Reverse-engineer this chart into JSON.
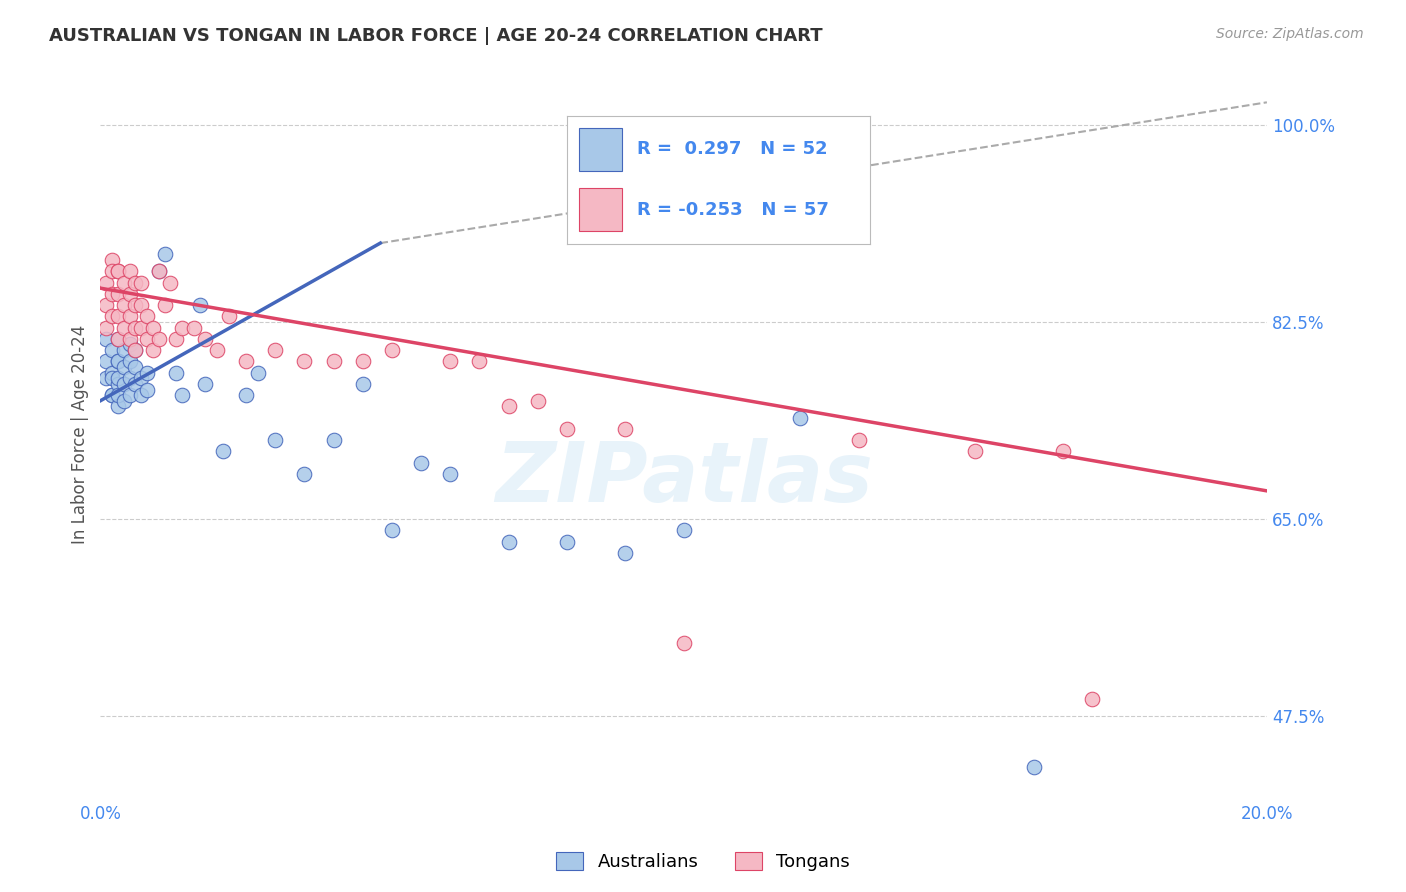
{
  "title": "AUSTRALIAN VS TONGAN IN LABOR FORCE | AGE 20-24 CORRELATION CHART",
  "source_text": "Source: ZipAtlas.com",
  "ylabel": "In Labor Force | Age 20-24",
  "xlim": [
    0.0,
    0.2
  ],
  "ylim": [
    0.4,
    1.05
  ],
  "xtick_positions": [
    0.0,
    0.05,
    0.1,
    0.15,
    0.2
  ],
  "xticklabels": [
    "0.0%",
    "",
    "",
    "",
    "20.0%"
  ],
  "ytick_positions": [
    0.475,
    0.65,
    0.825,
    1.0
  ],
  "ytick_labels": [
    "47.5%",
    "65.0%",
    "82.5%",
    "100.0%"
  ],
  "blue_R": 0.297,
  "blue_N": 52,
  "pink_R": -0.253,
  "pink_N": 57,
  "legend_label_blue": "Australians",
  "legend_label_pink": "Tongans",
  "watermark": "ZIPatlas",
  "blue_color": "#a8c8e8",
  "pink_color": "#f5b8c4",
  "blue_line_color": "#4466bb",
  "pink_line_color": "#dd4466",
  "grid_color": "#cccccc",
  "title_color": "#333333",
  "axis_label_color": "#555555",
  "right_tick_color": "#4488ee",
  "blue_trend_x": [
    0.0,
    0.048
  ],
  "blue_trend_y": [
    0.755,
    0.895
  ],
  "dash_line_x": [
    0.048,
    0.2
  ],
  "dash_line_y": [
    0.895,
    1.02
  ],
  "pink_trend_x": [
    0.0,
    0.2
  ],
  "pink_trend_y": [
    0.855,
    0.675
  ],
  "blue_scatter_x": [
    0.001,
    0.001,
    0.001,
    0.002,
    0.002,
    0.002,
    0.002,
    0.002,
    0.003,
    0.003,
    0.003,
    0.003,
    0.003,
    0.003,
    0.003,
    0.004,
    0.004,
    0.004,
    0.004,
    0.005,
    0.005,
    0.005,
    0.005,
    0.006,
    0.006,
    0.006,
    0.007,
    0.007,
    0.008,
    0.008,
    0.01,
    0.011,
    0.013,
    0.014,
    0.017,
    0.018,
    0.021,
    0.025,
    0.027,
    0.03,
    0.035,
    0.04,
    0.045,
    0.05,
    0.055,
    0.06,
    0.07,
    0.08,
    0.09,
    0.1,
    0.12,
    0.16
  ],
  "blue_scatter_y": [
    0.775,
    0.79,
    0.81,
    0.76,
    0.78,
    0.8,
    0.76,
    0.775,
    0.75,
    0.77,
    0.79,
    0.76,
    0.775,
    0.79,
    0.81,
    0.755,
    0.77,
    0.785,
    0.8,
    0.76,
    0.775,
    0.79,
    0.805,
    0.77,
    0.785,
    0.8,
    0.76,
    0.775,
    0.765,
    0.78,
    0.87,
    0.885,
    0.78,
    0.76,
    0.84,
    0.77,
    0.71,
    0.76,
    0.78,
    0.72,
    0.69,
    0.72,
    0.77,
    0.64,
    0.7,
    0.69,
    0.63,
    0.63,
    0.62,
    0.64,
    0.74,
    0.43
  ],
  "pink_scatter_x": [
    0.001,
    0.001,
    0.001,
    0.002,
    0.002,
    0.002,
    0.002,
    0.003,
    0.003,
    0.003,
    0.003,
    0.003,
    0.004,
    0.004,
    0.004,
    0.005,
    0.005,
    0.005,
    0.005,
    0.006,
    0.006,
    0.006,
    0.006,
    0.007,
    0.007,
    0.007,
    0.008,
    0.008,
    0.009,
    0.009,
    0.01,
    0.01,
    0.011,
    0.012,
    0.013,
    0.014,
    0.016,
    0.018,
    0.02,
    0.022,
    0.025,
    0.03,
    0.035,
    0.04,
    0.045,
    0.05,
    0.06,
    0.065,
    0.07,
    0.075,
    0.08,
    0.09,
    0.1,
    0.13,
    0.15,
    0.165,
    0.17
  ],
  "pink_scatter_y": [
    0.84,
    0.86,
    0.82,
    0.88,
    0.87,
    0.85,
    0.83,
    0.87,
    0.85,
    0.83,
    0.81,
    0.87,
    0.84,
    0.86,
    0.82,
    0.85,
    0.83,
    0.87,
    0.81,
    0.86,
    0.84,
    0.82,
    0.8,
    0.86,
    0.84,
    0.82,
    0.81,
    0.83,
    0.82,
    0.8,
    0.87,
    0.81,
    0.84,
    0.86,
    0.81,
    0.82,
    0.82,
    0.81,
    0.8,
    0.83,
    0.79,
    0.8,
    0.79,
    0.79,
    0.79,
    0.8,
    0.79,
    0.79,
    0.75,
    0.755,
    0.73,
    0.73,
    0.54,
    0.72,
    0.71,
    0.71,
    0.49
  ]
}
